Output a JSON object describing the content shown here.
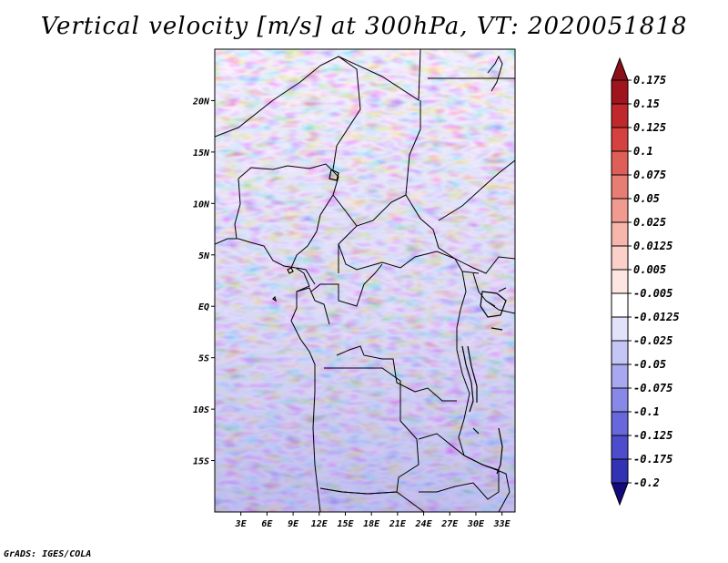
{
  "title": "Vertical velocity [m/s] at 300hPa, VT: 2020051818",
  "credit": "GrADS: IGES/COLA",
  "chart_data": {
    "type": "heatmap",
    "title": "Vertical velocity [m/s] at 300hPa, VT: 2020051818",
    "variable": "Vertical velocity",
    "units": "m/s",
    "level": "300hPa",
    "valid_time": "2020051818",
    "lon_range": [
      0,
      34.5
    ],
    "lat_range": [
      -20,
      25
    ],
    "x_ticks": [
      {
        "value": 3,
        "label": "3E"
      },
      {
        "value": 6,
        "label": "6E"
      },
      {
        "value": 9,
        "label": "9E"
      },
      {
        "value": 12,
        "label": "12E"
      },
      {
        "value": 15,
        "label": "15E"
      },
      {
        "value": 18,
        "label": "18E"
      },
      {
        "value": 21,
        "label": "21E"
      },
      {
        "value": 24,
        "label": "24E"
      },
      {
        "value": 27,
        "label": "27E"
      },
      {
        "value": 30,
        "label": "30E"
      },
      {
        "value": 33,
        "label": "33E"
      }
    ],
    "y_ticks": [
      {
        "value": 20,
        "label": "20N"
      },
      {
        "value": 15,
        "label": "15N"
      },
      {
        "value": 10,
        "label": "10N"
      },
      {
        "value": 5,
        "label": "5N"
      },
      {
        "value": 0,
        "label": "EQ"
      },
      {
        "value": -5,
        "label": "5S"
      },
      {
        "value": -10,
        "label": "10S"
      },
      {
        "value": -15,
        "label": "15S"
      }
    ],
    "colorbar": {
      "levels": [
        {
          "label": "0.175",
          "color": "#a0141e"
        },
        {
          "label": "0.15",
          "color": "#c0282c"
        },
        {
          "label": "0.125",
          "color": "#d4413e"
        },
        {
          "label": "0.1",
          "color": "#e05e58"
        },
        {
          "label": "0.075",
          "color": "#e87d74"
        },
        {
          "label": "0.05",
          "color": "#f09a90"
        },
        {
          "label": "0.025",
          "color": "#f6b6ac"
        },
        {
          "label": "0.0125",
          "color": "#fad0c8"
        },
        {
          "label": "0.005",
          "color": "#fde6e2"
        },
        {
          "label": "-0.005",
          "color": "#ffffff"
        },
        {
          "label": "-0.0125",
          "color": "#e2e2fb"
        },
        {
          "label": "-0.025",
          "color": "#c6c6f6"
        },
        {
          "label": "-0.05",
          "color": "#a8a8f0"
        },
        {
          "label": "-0.075",
          "color": "#8888e8"
        },
        {
          "label": "-0.1",
          "color": "#6868dc"
        },
        {
          "label": "-0.125",
          "color": "#4c4ccc"
        },
        {
          "label": "-0.175",
          "color": "#3232b4"
        },
        {
          "label": "-0.2",
          "color": "#1e1e96"
        }
      ],
      "top_arrow_color": "#8a0f18",
      "bottom_arrow_color": "#140a7a"
    }
  }
}
